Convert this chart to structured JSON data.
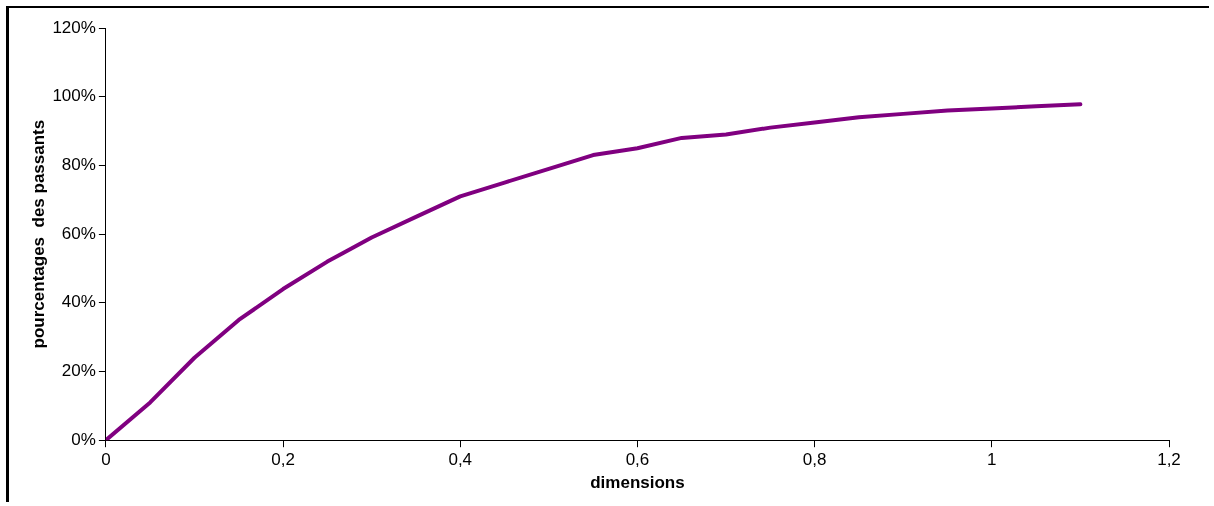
{
  "chart_data": {
    "type": "line",
    "xlabel": "dimensions",
    "ylabel": "pourcentages  des passants",
    "x": [
      0,
      0.05,
      0.1,
      0.15,
      0.2,
      0.25,
      0.3,
      0.35,
      0.4,
      0.45,
      0.5,
      0.55,
      0.6,
      0.65,
      0.7,
      0.75,
      0.8,
      0.85,
      0.9,
      0.95,
      1,
      1.05,
      1.1
    ],
    "series": [
      {
        "color": "#800080",
        "values": [
          0,
          11,
          24,
          35,
          44,
          52,
          59,
          65,
          71,
          75,
          79,
          83,
          85,
          88,
          89,
          91,
          92.5,
          94,
          95,
          96,
          96.6,
          97.2,
          97.8
        ]
      }
    ],
    "xlim": [
      0,
      1.2
    ],
    "xticks": [
      {
        "value": 0,
        "label": "0"
      },
      {
        "value": 0.2,
        "label": "0,2"
      },
      {
        "value": 0.4,
        "label": "0,4"
      },
      {
        "value": 0.6,
        "label": "0,6"
      },
      {
        "value": 0.8,
        "label": "0,8"
      },
      {
        "value": 1,
        "label": "1"
      },
      {
        "value": 1.2,
        "label": "1,2"
      }
    ],
    "ylim": [
      0,
      120
    ],
    "yticks": [
      {
        "value": 0,
        "label": "0%"
      },
      {
        "value": 20,
        "label": "20%"
      },
      {
        "value": 40,
        "label": "40%"
      },
      {
        "value": 60,
        "label": "60%"
      },
      {
        "value": 80,
        "label": "80%"
      },
      {
        "value": 100,
        "label": "100%"
      },
      {
        "value": 120,
        "label": "120%"
      }
    ],
    "grid": false,
    "legend": false,
    "marker": "none",
    "line_style": "solid"
  }
}
